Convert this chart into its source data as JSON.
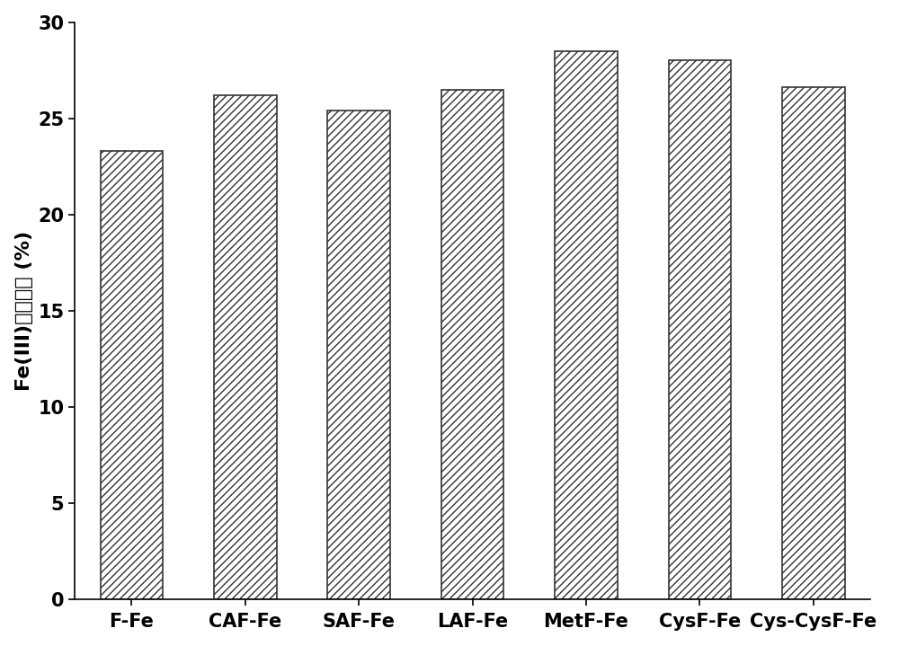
{
  "categories": [
    "F-Fe",
    "CAF-Fe",
    "SAF-Fe",
    "LAF-Fe",
    "MetF-Fe",
    "CysF-Fe",
    "Cys-CysF-Fe"
  ],
  "values": [
    23.3,
    26.2,
    25.4,
    26.5,
    28.5,
    28.0,
    26.6
  ],
  "bar_color": "#ffffff",
  "bar_edgecolor": "#333333",
  "hatch_pattern": "////",
  "ylabel_latin": "Fe(III)",
  "ylabel_chinese": "质量分数",
  "ylabel_unit": " (%)",
  "ylim": [
    0,
    30
  ],
  "yticks": [
    0,
    5,
    10,
    15,
    20,
    25,
    30
  ],
  "bar_width": 0.55,
  "background_color": "#ffffff",
  "tick_fontsize": 15,
  "label_fontsize": 16,
  "linewidth": 1.2,
  "figure_width": 10.0,
  "figure_height": 7.19
}
